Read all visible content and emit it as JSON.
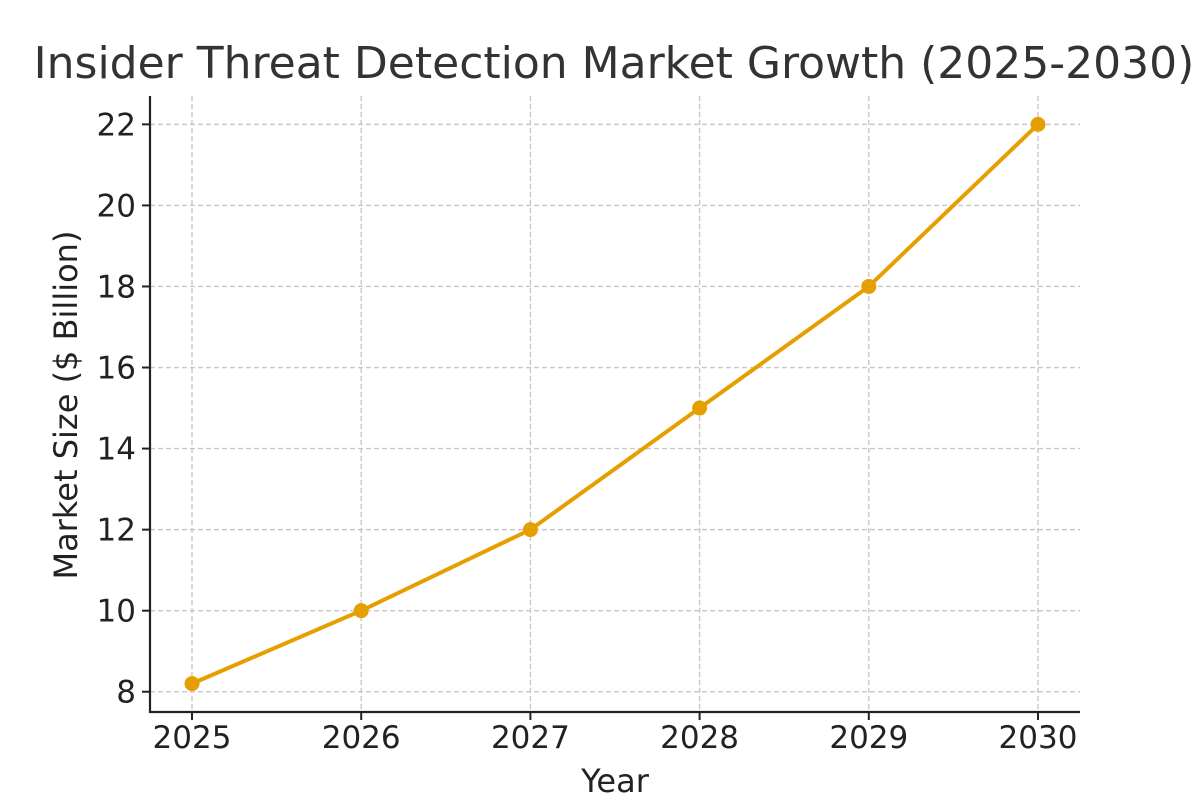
{
  "chart_data": {
    "type": "line",
    "title": "Insider Threat Detection Market Growth (2025-2030)",
    "xlabel": "Year",
    "ylabel": "Market Size ($ Billion)",
    "categories": [
      "2025",
      "2026",
      "2027",
      "2028",
      "2029",
      "2030"
    ],
    "series": [
      {
        "values": [
          8.2,
          10,
          12,
          15,
          18,
          22
        ],
        "color": "#E69F00"
      }
    ],
    "yticks": [
      8,
      10,
      12,
      14,
      16,
      18,
      20,
      22
    ],
    "ylim": [
      7.5,
      22.7
    ],
    "grid": true,
    "markers": true
  }
}
